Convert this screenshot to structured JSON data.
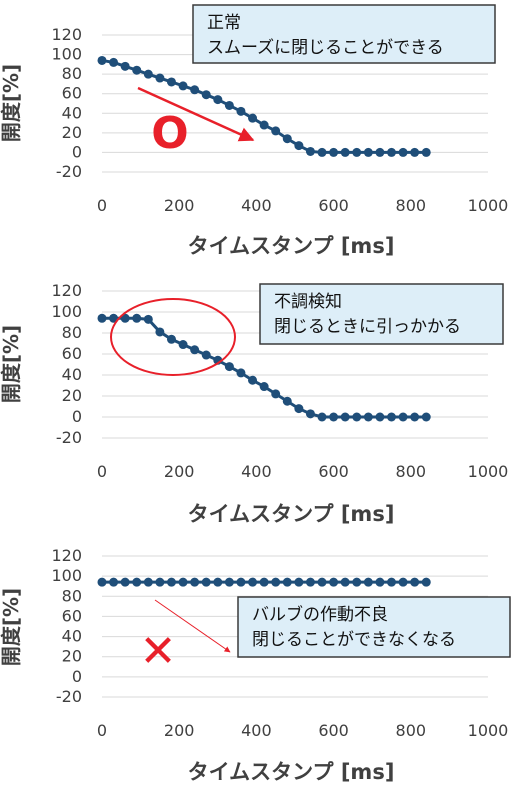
{
  "chart_data": [
    {
      "type": "line",
      "xlabel": "タイムスタンプ [ms]",
      "ylabel": "開度[%]",
      "xlim": [
        0,
        1000
      ],
      "ylim": [
        -20,
        120
      ],
      "x_ticks": [
        "0",
        "200",
        "400",
        "600",
        "800",
        "1000"
      ],
      "y_ticks": [
        "120",
        "100",
        "80",
        "60",
        "40",
        "20",
        "0",
        "-20"
      ],
      "grid": "horizontal",
      "series": [
        {
          "color": "#1f4e79",
          "x": [
            0,
            30,
            60,
            90,
            120,
            150,
            180,
            210,
            240,
            270,
            300,
            330,
            360,
            390,
            420,
            450,
            480,
            510,
            540,
            570,
            600,
            630,
            660,
            690,
            720,
            750,
            780,
            810,
            840
          ],
          "y": [
            94,
            92,
            88,
            84,
            80,
            76,
            72,
            68,
            64,
            59,
            54,
            48,
            42,
            35,
            28,
            22,
            14,
            7,
            1,
            0,
            0,
            0,
            0,
            0,
            0,
            0,
            0,
            0,
            0
          ]
        }
      ],
      "callout": {
        "line1": "正常",
        "line2": "スムーズに閉じることができる"
      },
      "mark": {
        "text": "O",
        "color": "#e8202a"
      },
      "arrow_color": "#e8202a"
    },
    {
      "type": "line",
      "xlabel": "タイムスタンプ [ms]",
      "ylabel": "開度[%]",
      "xlim": [
        0,
        1000
      ],
      "ylim": [
        -20,
        120
      ],
      "x_ticks": [
        "0",
        "200",
        "400",
        "600",
        "800",
        "1000"
      ],
      "y_ticks": [
        "120",
        "100",
        "80",
        "60",
        "40",
        "20",
        "0",
        "-20"
      ],
      "grid": "horizontal",
      "series": [
        {
          "color": "#1f4e79",
          "x": [
            0,
            30,
            60,
            90,
            120,
            150,
            180,
            210,
            240,
            270,
            300,
            330,
            360,
            390,
            420,
            450,
            480,
            510,
            540,
            570,
            600,
            630,
            660,
            690,
            720,
            750,
            780,
            810,
            840
          ],
          "y": [
            94,
            94,
            94,
            94,
            93,
            81,
            74,
            69,
            64,
            59,
            54,
            48,
            42,
            35,
            29,
            22,
            15,
            8,
            3,
            0,
            0,
            0,
            0,
            0,
            0,
            0,
            0,
            0,
            0
          ]
        }
      ],
      "callout": {
        "line1": "不調検知",
        "line2": "閉じるときに引っかかる"
      },
      "circle_color": "#e8202a"
    },
    {
      "type": "line",
      "xlabel": "タイムスタンプ [ms]",
      "ylabel": "開度[%]",
      "xlim": [
        0,
        1000
      ],
      "ylim": [
        -20,
        120
      ],
      "x_ticks": [
        "0",
        "200",
        "400",
        "600",
        "800",
        "1000"
      ],
      "y_ticks": [
        "120",
        "100",
        "80",
        "60",
        "40",
        "20",
        "0",
        "-20"
      ],
      "grid": "horizontal",
      "series": [
        {
          "color": "#1f4e79",
          "x": [
            0,
            30,
            60,
            90,
            120,
            150,
            180,
            210,
            240,
            270,
            300,
            330,
            360,
            390,
            420,
            450,
            480,
            510,
            540,
            570,
            600,
            630,
            660,
            690,
            720,
            750,
            780,
            810,
            840
          ],
          "y": [
            94,
            94,
            94,
            94,
            94,
            94,
            94,
            94,
            94,
            94,
            94,
            94,
            94,
            94,
            94,
            94,
            94,
            94,
            94,
            94,
            94,
            94,
            94,
            94,
            94,
            94,
            94,
            94,
            94
          ]
        }
      ],
      "callout": {
        "line1": "バルブの作動不良",
        "line2": "閉じることができなくなる"
      },
      "mark": {
        "text": "✕",
        "color": "#e8202a"
      },
      "arrow_color": "#e8202a"
    }
  ]
}
